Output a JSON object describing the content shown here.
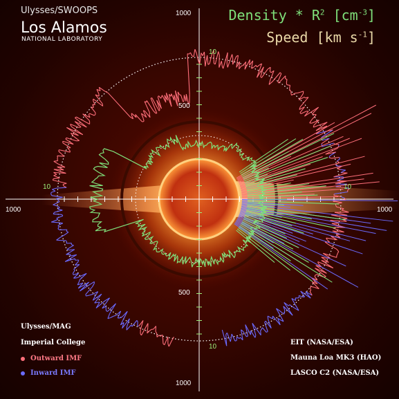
{
  "header": {
    "instrument_top": "Ulysses/SWOOPS",
    "org_name": "Los Alamos",
    "org_sub": "NATIONAL LABORATORY"
  },
  "titles": {
    "density": "Density * R",
    "density_exp": "2",
    "density_unit_open": " [cm",
    "density_unit_exp": "-3",
    "density_unit_close": "]",
    "speed": "Speed [km s",
    "speed_exp": "-1",
    "speed_close": "]"
  },
  "axis_labels": {
    "top": "1000",
    "upper_mid": "500",
    "lower_mid": "500",
    "bottom": "1000",
    "left": "1000",
    "right": "1000",
    "density_top": "10",
    "density_left": "10",
    "density_right": "10",
    "density_bottom": "10"
  },
  "bottom_left": {
    "mag": "Ulysses/MAG",
    "college": "Imperial College",
    "outward": "Outward IMF",
    "inward": "Inward  IMF"
  },
  "bottom_right": {
    "eit": "EIT (NASA/ESA)",
    "mk3": "Mauna Loa MK3 (HAO)",
    "lasco": "LASCO C2 (NASA/ESA)"
  },
  "colors": {
    "outward": "#ff6f7a",
    "inward": "#6b6bff",
    "density": "#7fe07a",
    "speed": "#ead9a8"
  }
}
